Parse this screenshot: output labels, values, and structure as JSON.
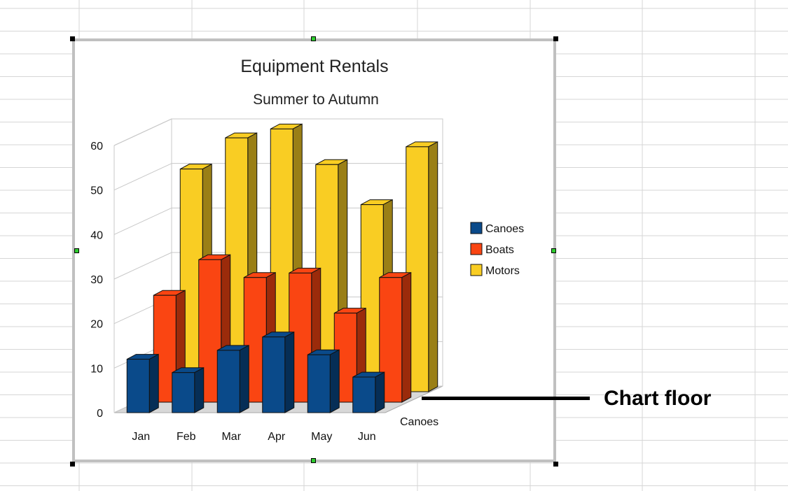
{
  "annotation": {
    "label": "Chart floor"
  },
  "colors": {
    "Canoes": "#0a4a8a",
    "Boats": "#fa4512",
    "Motors": "#f9cd23",
    "frame": "#c0c0c0",
    "grid": "#c8c8c8"
  },
  "chart_data": {
    "type": "bar",
    "title": "Equipment Rentals",
    "subtitle": "Summer to Autumn",
    "categories": [
      "Jan",
      "Feb",
      "Mar",
      "Apr",
      "May",
      "Jun"
    ],
    "depth_label": "Canoes",
    "yticks": [
      "0",
      "10",
      "20",
      "30",
      "40",
      "50",
      "60"
    ],
    "ylim": [
      0,
      60
    ],
    "grid": true,
    "legend_position": "right",
    "series": [
      {
        "name": "Canoes",
        "values": [
          12,
          9,
          14,
          17,
          13,
          8
        ]
      },
      {
        "name": "Boats",
        "values": [
          24,
          32,
          28,
          29,
          20,
          28
        ]
      },
      {
        "name": "Motors",
        "values": [
          50,
          57,
          59,
          51,
          42,
          55
        ]
      }
    ]
  }
}
